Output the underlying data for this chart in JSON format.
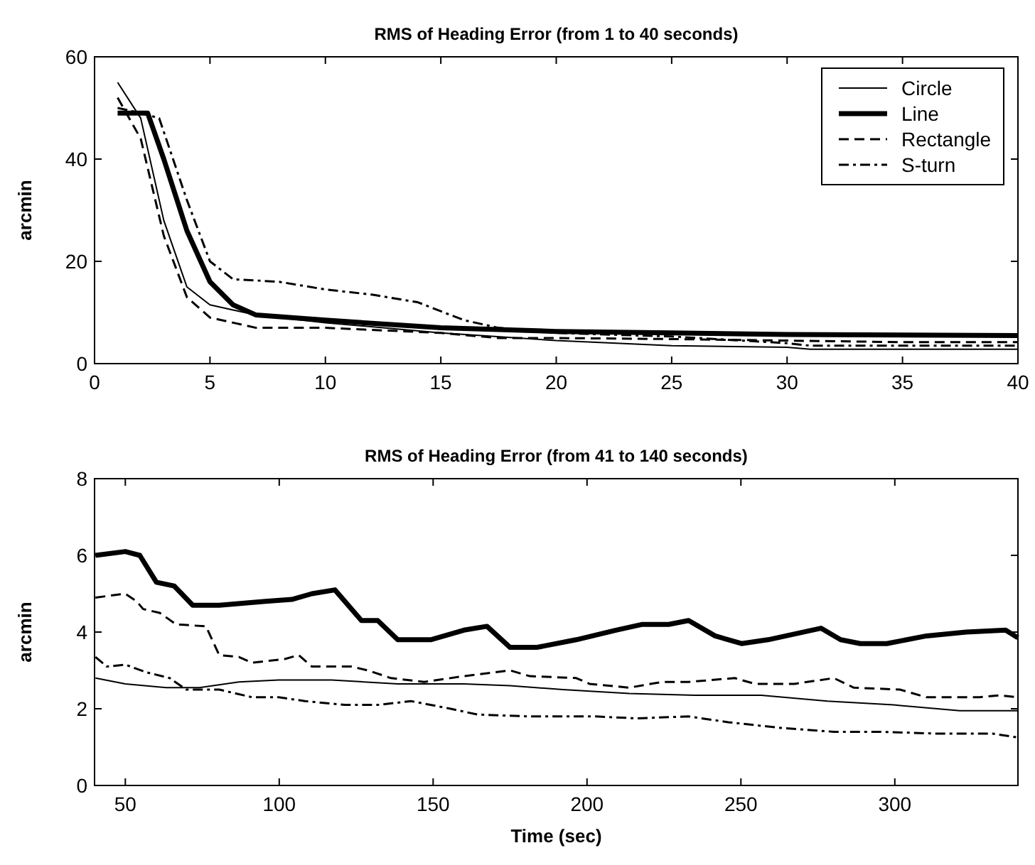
{
  "chart_data": [
    {
      "type": "line",
      "title": "RMS of Heading Error (from 1 to 40 seconds)",
      "ylabel": "arcmin",
      "xlim": [
        0,
        40
      ],
      "ylim": [
        0,
        60
      ],
      "xticks": [
        0,
        5,
        10,
        15,
        20,
        25,
        30,
        35,
        40
      ],
      "yticks": [
        0,
        20,
        40,
        60
      ],
      "grid": false,
      "legend": "top right",
      "series": [
        {
          "name": "Circle",
          "color": "#000000",
          "line_style": "solid",
          "x": [
            1,
            2,
            3,
            4,
            5,
            6,
            7,
            10,
            15,
            20,
            25,
            30,
            31,
            40
          ],
          "values": [
            55,
            48,
            28,
            15,
            11.5,
            10.5,
            9.5,
            8,
            6,
            4.5,
            3.5,
            3.2,
            2.8,
            2.8
          ]
        },
        {
          "name": "Line",
          "color": "#000000",
          "line_style": "solid",
          "x": [
            1,
            2.3,
            3,
            4,
            5,
            6,
            7,
            10,
            15,
            20,
            25,
            30,
            40
          ],
          "values": [
            49,
            49,
            40,
            26,
            16,
            11.5,
            9.5,
            8.5,
            7,
            6.3,
            6,
            5.7,
            5.5
          ]
        },
        {
          "name": "Rectangle",
          "color": "#000000",
          "line_style": "dashed",
          "x": [
            1,
            2,
            3,
            4,
            5,
            6,
            7,
            10,
            15,
            17.5,
            20,
            25,
            30,
            35,
            40
          ],
          "values": [
            52,
            44,
            25,
            13,
            9,
            8,
            7,
            7,
            6,
            5,
            5,
            4.8,
            4.5,
            4.2,
            4.2
          ]
        },
        {
          "name": "S-turn",
          "color": "#000000",
          "line_style": "dashdot",
          "x": [
            1,
            2,
            2.8,
            4,
            5,
            6,
            8,
            10,
            12,
            14,
            16,
            17.5,
            20,
            25,
            30,
            31,
            40
          ],
          "values": [
            50,
            49,
            48,
            32,
            20,
            16.5,
            16,
            14.5,
            13.5,
            12,
            8.5,
            7,
            6,
            5.3,
            4,
            3.5,
            3.5
          ]
        }
      ]
    },
    {
      "type": "line",
      "title": "RMS of Heading Error (from 41 to 140 seconds)",
      "xlabel": "Time (sec)",
      "ylabel": "arcmin",
      "xlim": [
        40,
        340
      ],
      "ylim": [
        0,
        8
      ],
      "xticks": [
        50,
        100,
        150,
        200,
        250,
        300
      ],
      "yticks": [
        0,
        2,
        4,
        6,
        8
      ],
      "grid": false,
      "series": [
        {
          "color": "#000000",
          "line_style": "solid",
          "x": [
            40.3,
            50,
            63.3,
            74.1,
            86.9,
            99.8,
            117,
            138.5,
            160,
            175,
            192.2,
            213.7,
            235.1,
            256.6,
            278.1,
            299.6,
            321.1,
            340
          ],
          "values": [
            2.8,
            2.65,
            2.55,
            2.55,
            2.7,
            2.75,
            2.75,
            2.65,
            2.65,
            2.6,
            2.5,
            2.4,
            2.35,
            2.35,
            2.2,
            2.1,
            1.95,
            1.95
          ]
        },
        {
          "color": "#000000",
          "line_style": "solid",
          "x": [
            40.3,
            50,
            54.7,
            60.1,
            65.9,
            71.9,
            80.5,
            95.5,
            104.1,
            110.6,
            118.1,
            126.7,
            132,
            138.5,
            149.2,
            160,
            167.5,
            175,
            183.6,
            196.5,
            209.4,
            218,
            226.5,
            233,
            241.6,
            250.2,
            258.8,
            276,
            282.4,
            288.8,
            297.4,
            310.3,
            323.2,
            336,
            340
          ],
          "values": [
            6.0,
            6.1,
            6.0,
            5.3,
            5.2,
            4.7,
            4.7,
            4.8,
            4.85,
            5.0,
            5.1,
            4.3,
            4.3,
            3.8,
            3.8,
            4.05,
            4.15,
            3.6,
            3.6,
            3.8,
            4.05,
            4.2,
            4.2,
            4.3,
            3.9,
            3.7,
            3.8,
            4.1,
            3.8,
            3.7,
            3.7,
            3.9,
            4.0,
            4.05,
            3.85
          ]
        },
        {
          "color": "#000000",
          "line_style": "dashed",
          "x": [
            40.3,
            50,
            53.7,
            55.8,
            61.2,
            66.5,
            76.2,
            80.5,
            86.9,
            91.2,
            102,
            106.3,
            110.6,
            123.5,
            128.8,
            136.3,
            147.1,
            160,
            175,
            181.4,
            196.5,
            200.8,
            213.7,
            224.4,
            233,
            248,
            254.5,
            267.4,
            280.2,
            286.7,
            301.7,
            310.3,
            327.5,
            333.9,
            340
          ],
          "values": [
            4.9,
            5.0,
            4.8,
            4.6,
            4.5,
            4.2,
            4.15,
            3.4,
            3.35,
            3.2,
            3.3,
            3.4,
            3.1,
            3.1,
            3.0,
            2.8,
            2.7,
            2.85,
            3.0,
            2.85,
            2.8,
            2.65,
            2.55,
            2.7,
            2.7,
            2.8,
            2.65,
            2.65,
            2.8,
            2.55,
            2.5,
            2.3,
            2.3,
            2.35,
            2.3
          ]
        },
        {
          "color": "#000000",
          "line_style": "dashdot",
          "x": [
            40.3,
            44,
            50,
            56.9,
            64.4,
            69.8,
            80.5,
            91.2,
            99.8,
            108.4,
            121.3,
            132,
            142.8,
            155.7,
            164.3,
            181.4,
            202.9,
            215.8,
            233,
            245.9,
            263,
            280.2,
            295.3,
            314.6,
            331.8,
            340
          ],
          "values": [
            3.35,
            3.1,
            3.15,
            2.95,
            2.8,
            2.5,
            2.5,
            2.3,
            2.3,
            2.2,
            2.1,
            2.1,
            2.2,
            2.0,
            1.85,
            1.8,
            1.8,
            1.75,
            1.8,
            1.65,
            1.5,
            1.4,
            1.4,
            1.35,
            1.35,
            1.25
          ]
        }
      ]
    }
  ]
}
